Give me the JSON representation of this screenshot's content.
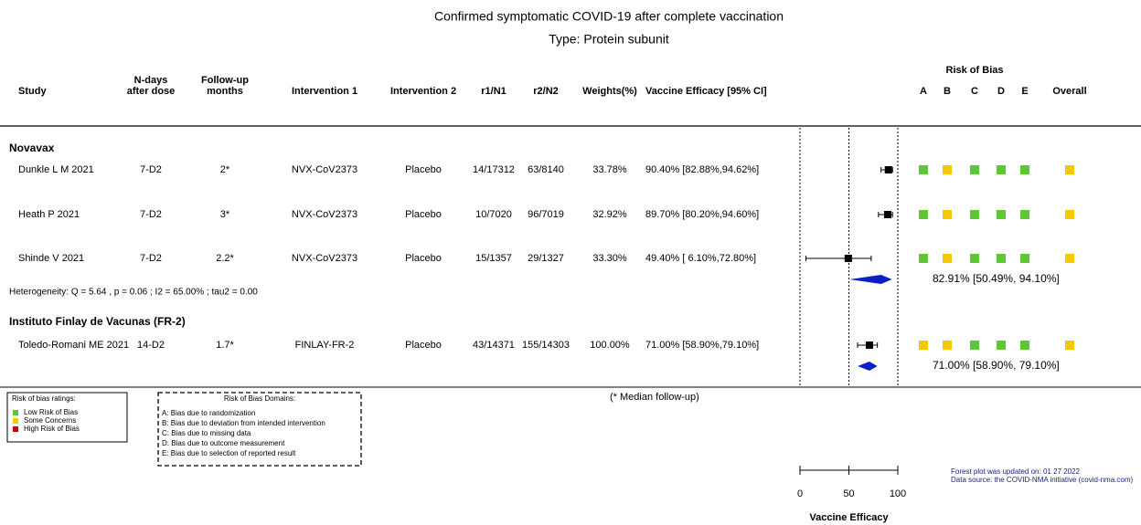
{
  "chart_data": {
    "type": "forest",
    "title": "Confirmed symptomatic COVID-19 after complete vaccination",
    "subtitle": "Type: Protein subunit",
    "columns": [
      [
        "Study"
      ],
      [
        "N-days",
        "after dose"
      ],
      [
        "Follow-up",
        "months"
      ],
      [
        "Intervention 1"
      ],
      [
        "Intervention 2"
      ],
      [
        "r1/N1"
      ],
      [
        "r2/N2"
      ],
      [
        "Weights(%)"
      ],
      [
        "Vaccine Efficacy [95% CI]"
      ]
    ],
    "rob_title": "Risk of Bias",
    "rob_columns": [
      "A",
      "B",
      "C",
      "D",
      "E",
      "Overall"
    ],
    "rob_colors": {
      "low": "#5cc832",
      "some": "#f5c800",
      "high": "#cc0000"
    },
    "groups": [
      {
        "name": "Novavax",
        "studies": [
          {
            "cells": [
              "Dunkle L M 2021",
              "7-D2",
              "2*",
              "NVX-CoV2373",
              "Placebo",
              "14/17312",
              "63/8140",
              "33.78%",
              "90.40% [82.88%,94.62%]"
            ],
            "estimate": 90.4,
            "ci": [
              82.88,
              94.62
            ],
            "rob": [
              "low",
              "some",
              "low",
              "low",
              "low",
              "some"
            ]
          },
          {
            "cells": [
              "Heath P 2021",
              "7-D2",
              "3*",
              "NVX-CoV2373",
              "Placebo",
              "10/7020",
              "96/7019",
              "32.92%",
              "89.70% [80.20%,94.60%]"
            ],
            "estimate": 89.7,
            "ci": [
              80.2,
              94.6
            ],
            "rob": [
              "low",
              "some",
              "low",
              "low",
              "low",
              "some"
            ]
          },
          {
            "cells": [
              "Shinde V 2021",
              "7-D2",
              "2.2*",
              "NVX-CoV2373",
              "Placebo",
              "15/1357",
              "29/1327",
              "33.30%",
              "49.40% [ 6.10%,72.80%]"
            ],
            "estimate": 49.4,
            "ci": [
              6.1,
              72.8
            ],
            "rob": [
              "low",
              "some",
              "low",
              "low",
              "low",
              "some"
            ]
          }
        ],
        "pooled": {
          "estimate": 82.91,
          "ci": [
            50.49,
            94.1
          ],
          "label": "82.91% [50.49%, 94.10%]"
        },
        "heterogeneity": "Heterogeneity: Q = 5.64 , p = 0.06 ; I2 = 65.00% ; tau2 = 0.00"
      },
      {
        "name": "Instituto Finlay de Vacunas (FR-2)",
        "studies": [
          {
            "cells": [
              "Toledo-Romani ME 2021",
              "14-D2",
              "1.7*",
              "FINLAY-FR-2",
              "Placebo",
              "43/14371",
              "155/14303",
              "100.00%",
              "71.00% [58.90%,79.10%]"
            ],
            "estimate": 71.0,
            "ci": [
              58.9,
              79.1
            ],
            "rob": [
              "some",
              "some",
              "low",
              "low",
              "low",
              "some"
            ]
          }
        ],
        "pooled": {
          "estimate": 71.0,
          "ci": [
            58.9,
            79.1
          ],
          "label": "71.00% [58.90%, 79.10%]"
        }
      }
    ],
    "footnote": "(* Median follow-up)",
    "rob_legend": {
      "title": "Risk of bias ratings:",
      "items": [
        {
          "key": "low",
          "label": "Low Risk of Bias"
        },
        {
          "key": "some",
          "label": "Some Concerns"
        },
        {
          "key": "high",
          "label": "High Risk of Bias"
        }
      ]
    },
    "domains": {
      "title": "Risk of Bias Domains:",
      "items": [
        "A: Bias due to randomization",
        "B: Bias due to deviation from intended intervention",
        "C: Bias due to missing data",
        "D: Bias due to outcome measurement",
        "E: Bias due to selection of reported result"
      ]
    },
    "source": [
      "Forest plot was updated on: 01 27 2022",
      "Data source: the COVID-NMA initiative (covid-nma.com)"
    ],
    "xlim": [
      0,
      100
    ],
    "xticks": [
      0,
      50,
      100
    ],
    "xlabel": "Vaccine Efficacy"
  }
}
